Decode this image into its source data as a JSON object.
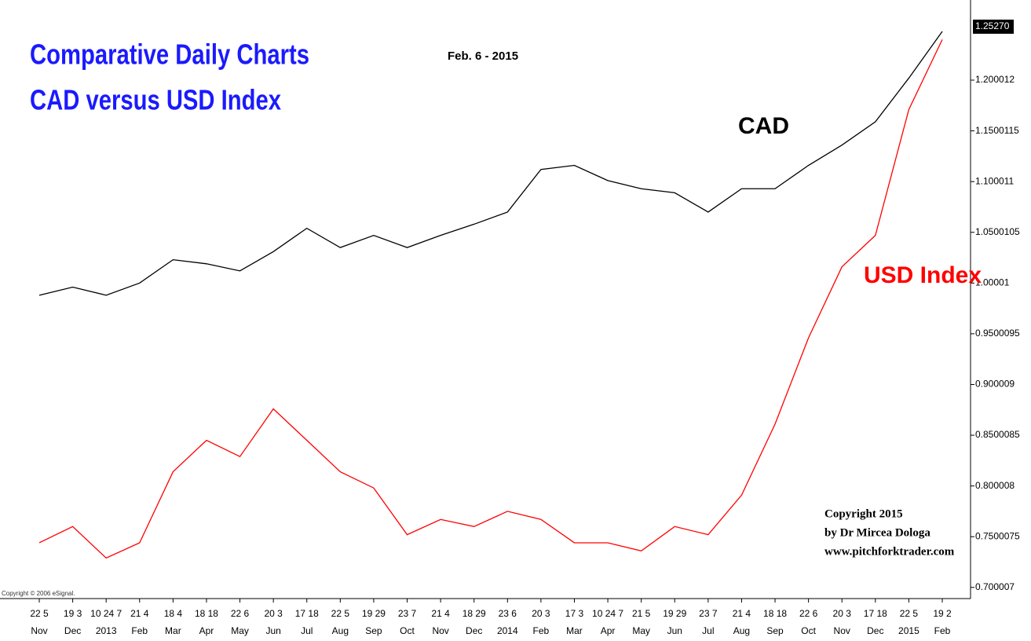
{
  "chart_data": {
    "type": "line",
    "title": [
      "Comparative Daily Charts",
      "CAD versus USD Index"
    ],
    "subtitle": "Feb. 6 - 2015",
    "categories": [
      "Nov",
      "Dec",
      "2013",
      "Feb",
      "Mar",
      "Apr",
      "May",
      "Jun",
      "Jul",
      "Aug",
      "Sep",
      "Oct",
      "Nov",
      "Dec",
      "2014",
      "Feb",
      "Mar",
      "Apr",
      "May",
      "Jun",
      "Jul",
      "Aug",
      "Sep",
      "Oct",
      "Nov",
      "Dec",
      "2015",
      "Feb"
    ],
    "day_labels": [
      "22 5",
      "19 3",
      "10 24 7",
      "21 4",
      "18 4",
      "18 18",
      "22 6",
      "20 3",
      "17 18",
      "22 5",
      "19 29",
      "23 7",
      "21 4",
      "18 29",
      "23 6",
      "20 3",
      "17 3",
      "10 24 7",
      "21 5",
      "19 29",
      "23 7",
      "21 4",
      "18 18",
      "22 6",
      "20 3",
      "17 18",
      "22 5",
      "19 2"
    ],
    "series": [
      {
        "name": "CAD",
        "color": "#000000",
        "values": [
          0.988,
          0.996,
          0.988,
          1.0,
          1.023,
          1.019,
          1.012,
          1.031,
          1.054,
          1.035,
          1.047,
          1.035,
          1.047,
          1.058,
          1.07,
          1.112,
          1.116,
          1.101,
          1.093,
          1.089,
          1.07,
          1.093,
          1.093,
          1.116,
          1.136,
          1.159,
          1.202,
          1.248
        ]
      },
      {
        "name": "USD Index",
        "color": "#ff0000",
        "values": [
          0.744,
          0.76,
          0.729,
          0.744,
          0.814,
          0.845,
          0.829,
          0.876,
          0.845,
          0.814,
          0.798,
          0.752,
          0.767,
          0.76,
          0.775,
          0.767,
          0.744,
          0.744,
          0.736,
          0.76,
          0.752,
          0.791,
          0.861,
          0.946,
          1.016,
          1.047,
          1.171,
          1.24
        ]
      }
    ],
    "ylim": [
      0.689,
      1.279
    ],
    "yticks": [
      0.700007,
      0.7500075,
      0.800008,
      0.8500085,
      0.900009,
      0.9500095,
      1.00001,
      1.0500105,
      1.100011,
      1.1500115,
      1.200012
    ],
    "last_price": {
      "value": 1.2527,
      "label": "1.25270"
    },
    "copyright": [
      "Copyright 2015",
      "by Dr Mircea Dologa",
      "www.pitchforktrader.com"
    ],
    "source": "Copyright © 2006 eSignal."
  }
}
